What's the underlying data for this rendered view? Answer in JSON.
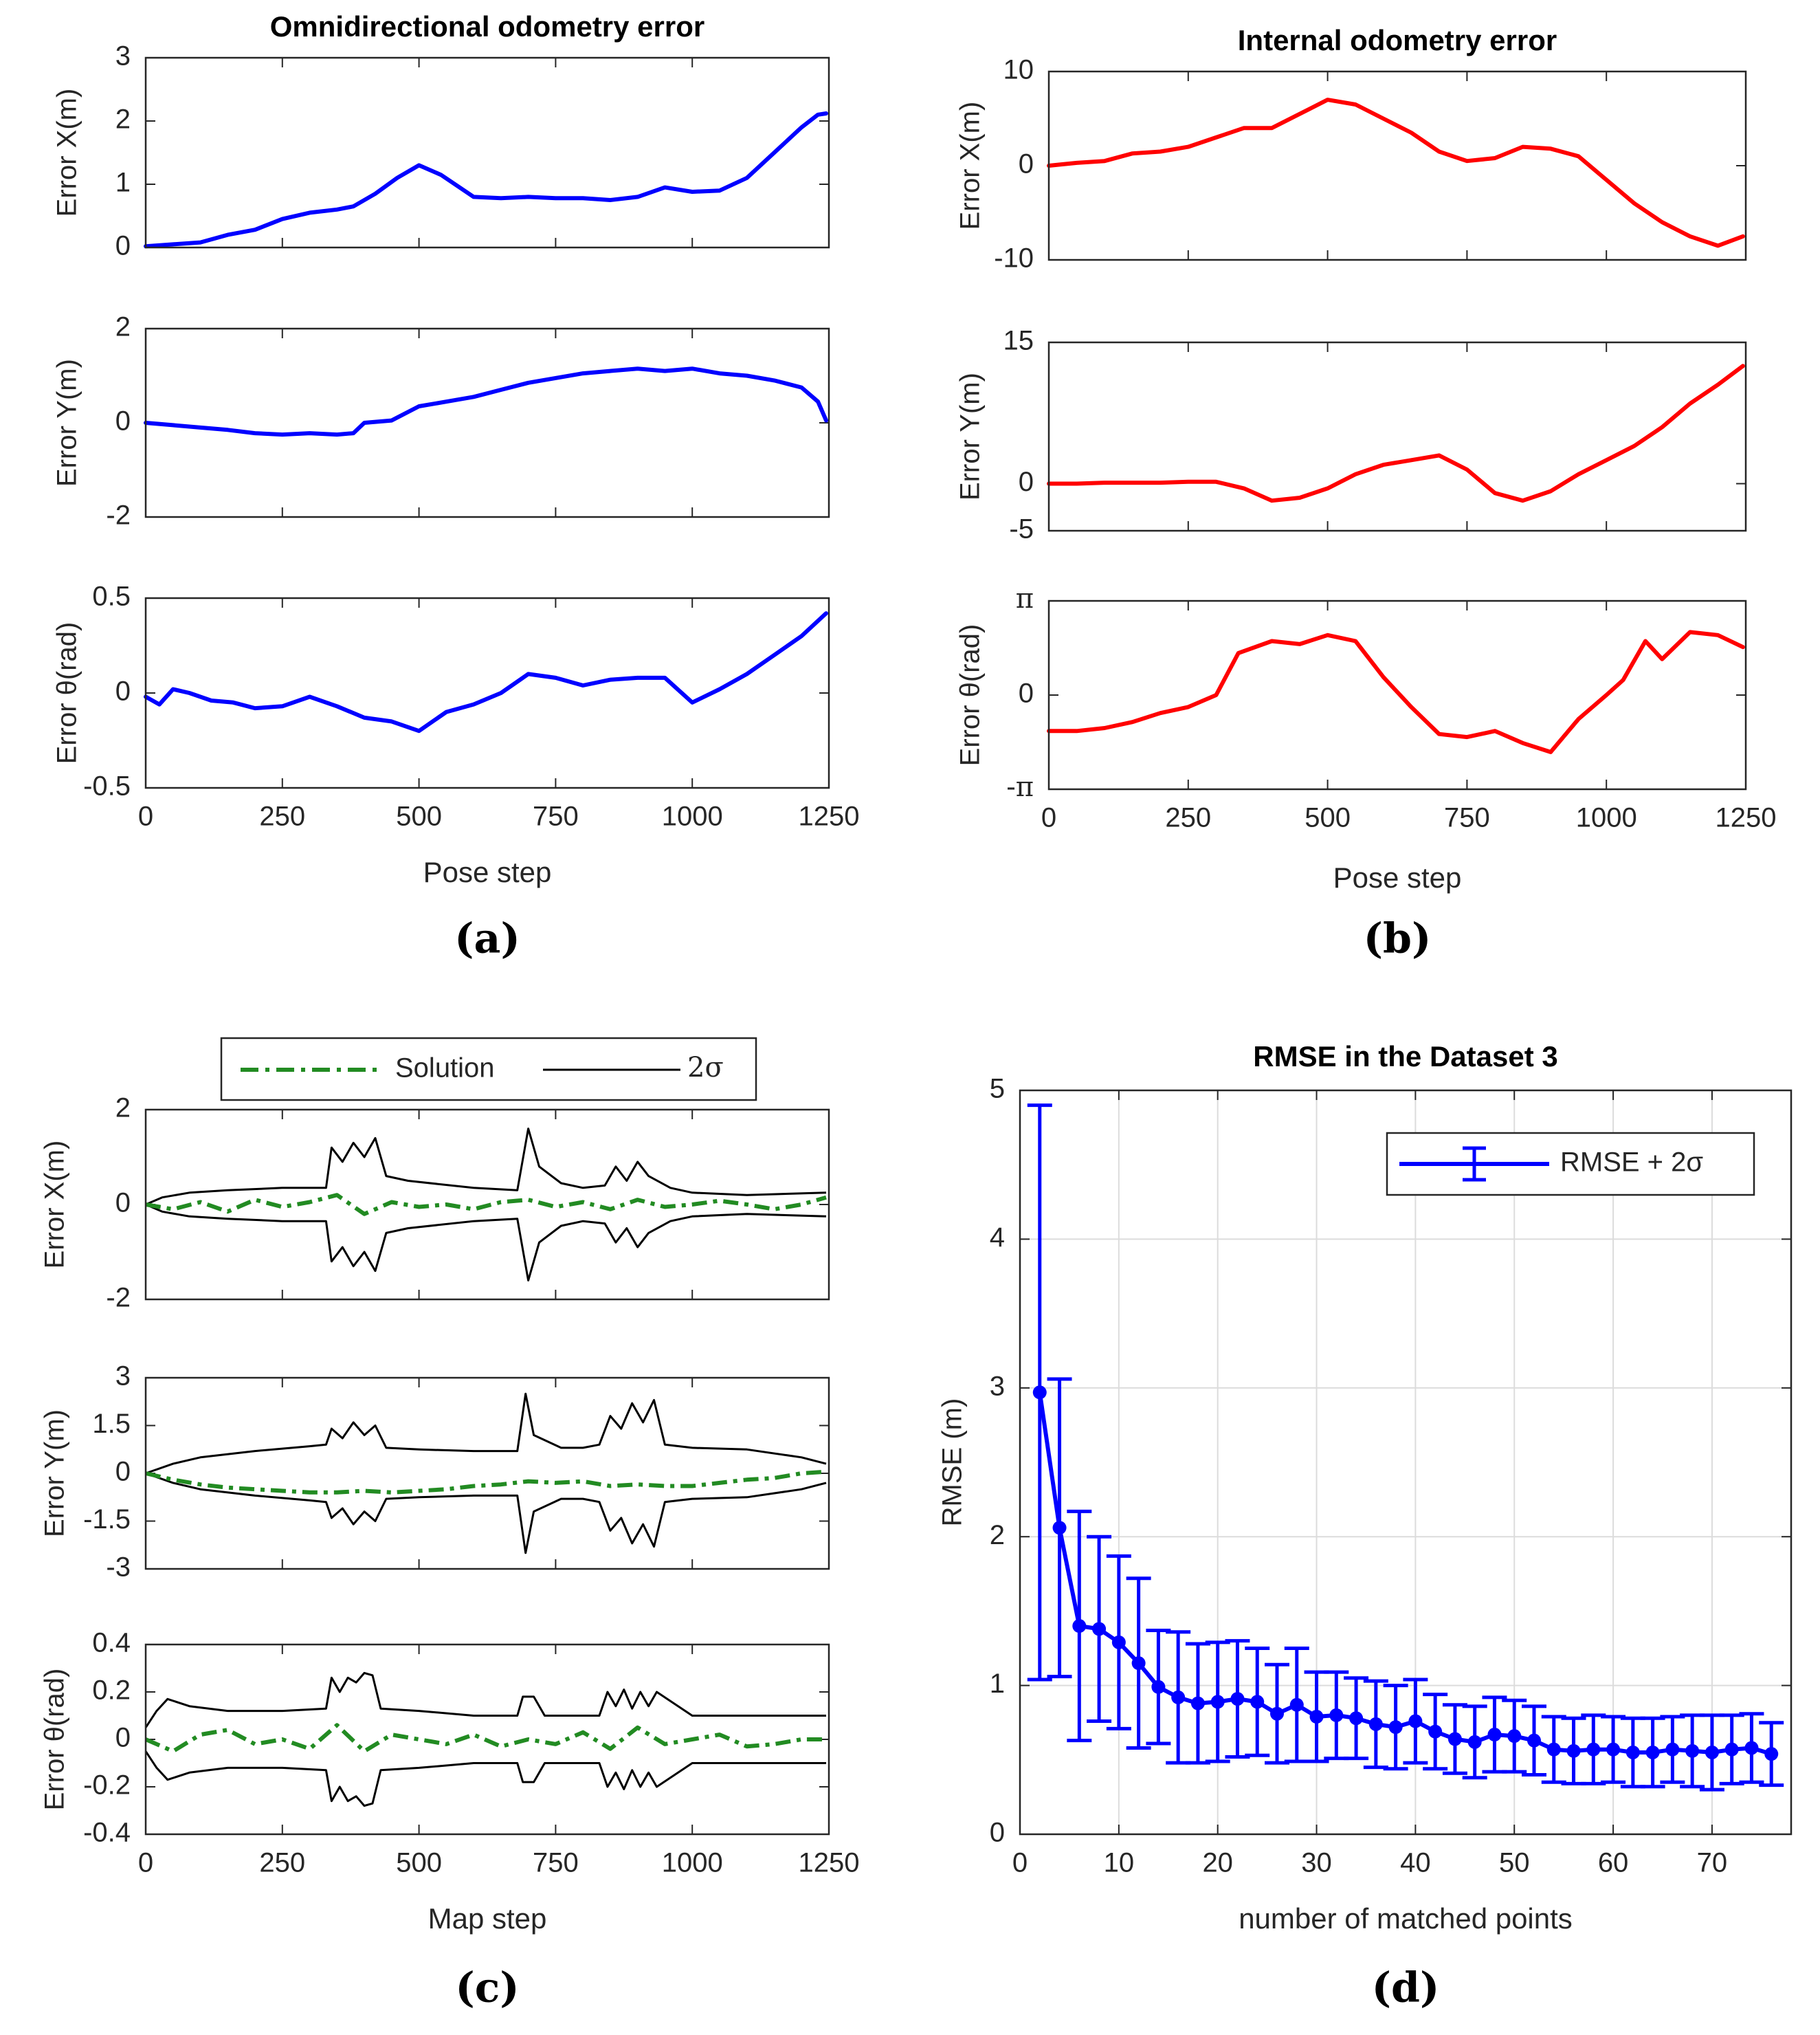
{
  "chart_data": [
    {
      "id": "a",
      "type": "line",
      "panel_label": "(a)",
      "title": "Omnidirectional odometry error",
      "xlabel": "Pose step",
      "xlim": [
        0,
        1250
      ],
      "xticks": [
        0,
        250,
        500,
        750,
        1000,
        1250
      ],
      "xtick_labels": [
        "0",
        "250",
        "500",
        "750",
        "1000",
        "1250"
      ],
      "color": "#0000ff",
      "subplots": [
        {
          "ylabel": "Error X(m)",
          "ylim": [
            0,
            3
          ],
          "yticks": [
            0,
            1,
            2,
            3
          ],
          "ytick_labels": [
            "0",
            "1",
            "2",
            "3"
          ],
          "x": [
            0,
            50,
            100,
            150,
            200,
            250,
            300,
            350,
            380,
            420,
            460,
            500,
            540,
            600,
            650,
            700,
            750,
            800,
            850,
            900,
            950,
            1000,
            1050,
            1100,
            1150,
            1200,
            1230,
            1245
          ],
          "y": [
            0.02,
            0.05,
            0.08,
            0.2,
            0.28,
            0.45,
            0.55,
            0.6,
            0.65,
            0.85,
            1.1,
            1.3,
            1.15,
            0.8,
            0.78,
            0.8,
            0.78,
            0.78,
            0.75,
            0.8,
            0.95,
            0.88,
            0.9,
            1.1,
            1.5,
            1.9,
            2.1,
            2.12
          ]
        },
        {
          "ylabel": "Error Y(m)",
          "ylim": [
            -2,
            2
          ],
          "yticks": [
            -2,
            0,
            2
          ],
          "ytick_labels": [
            "-2",
            "0",
            "2"
          ],
          "x": [
            0,
            50,
            100,
            150,
            200,
            250,
            300,
            350,
            380,
            400,
            450,
            500,
            550,
            600,
            650,
            700,
            750,
            800,
            850,
            900,
            950,
            1000,
            1050,
            1100,
            1150,
            1200,
            1230,
            1245
          ],
          "y": [
            0.0,
            -0.05,
            -0.1,
            -0.15,
            -0.22,
            -0.25,
            -0.22,
            -0.25,
            -0.22,
            0.0,
            0.05,
            0.35,
            0.45,
            0.55,
            0.7,
            0.85,
            0.95,
            1.05,
            1.1,
            1.15,
            1.1,
            1.15,
            1.05,
            1.0,
            0.9,
            0.75,
            0.45,
            0.05
          ]
        },
        {
          "ylabel": "Error θ(rad)",
          "ylim": [
            -0.5,
            0.5
          ],
          "yticks": [
            -0.5,
            0,
            0.5
          ],
          "ytick_labels": [
            "-0.5",
            "0",
            "0.5"
          ],
          "x": [
            0,
            25,
            50,
            80,
            120,
            160,
            200,
            250,
            300,
            350,
            400,
            450,
            480,
            500,
            550,
            600,
            650,
            700,
            750,
            800,
            850,
            900,
            950,
            1000,
            1050,
            1100,
            1150,
            1200,
            1245
          ],
          "y": [
            -0.02,
            -0.06,
            0.02,
            0.0,
            -0.04,
            -0.05,
            -0.08,
            -0.07,
            -0.02,
            -0.07,
            -0.13,
            -0.15,
            -0.18,
            -0.2,
            -0.1,
            -0.06,
            0.0,
            0.1,
            0.08,
            0.04,
            0.07,
            0.08,
            0.08,
            -0.05,
            0.02,
            0.1,
            0.2,
            0.3,
            0.42
          ]
        }
      ]
    },
    {
      "id": "b",
      "type": "line",
      "panel_label": "(b)",
      "title": "Internal odometry error",
      "xlabel": "Pose step",
      "xlim": [
        0,
        1250
      ],
      "xticks": [
        0,
        250,
        500,
        750,
        1000,
        1250
      ],
      "xtick_labels": [
        "0",
        "250",
        "500",
        "750",
        "1000",
        "1250"
      ],
      "color": "#ff0000",
      "subplots": [
        {
          "ylabel": "Error X(m)",
          "ylim": [
            -10,
            10
          ],
          "yticks": [
            -10,
            0,
            10
          ],
          "ytick_labels": [
            "-10",
            "0",
            "10"
          ],
          "x": [
            0,
            50,
            100,
            150,
            200,
            250,
            300,
            350,
            400,
            450,
            500,
            550,
            600,
            650,
            700,
            750,
            800,
            850,
            900,
            950,
            1000,
            1050,
            1100,
            1150,
            1200,
            1245
          ],
          "y": [
            0,
            0.3,
            0.5,
            1.3,
            1.5,
            2.0,
            3.0,
            4.0,
            4.0,
            5.5,
            7.0,
            6.5,
            5.0,
            3.5,
            1.5,
            0.5,
            0.8,
            2.0,
            1.8,
            1.0,
            -1.5,
            -4.0,
            -6.0,
            -7.5,
            -8.5,
            -7.5
          ]
        },
        {
          "ylabel": "Error Y(m)",
          "ylim": [
            -5,
            15
          ],
          "yticks": [
            -5,
            0,
            15
          ],
          "ytick_labels": [
            "-5",
            "0",
            "15"
          ],
          "x": [
            0,
            50,
            100,
            150,
            200,
            250,
            300,
            350,
            400,
            450,
            500,
            550,
            600,
            650,
            700,
            750,
            800,
            850,
            900,
            950,
            1000,
            1050,
            1100,
            1150,
            1200,
            1245
          ],
          "y": [
            0,
            0,
            0.1,
            0.1,
            0.1,
            0.2,
            0.2,
            -0.5,
            -1.8,
            -1.5,
            -0.5,
            1.0,
            2.0,
            2.5,
            3.0,
            1.5,
            -1.0,
            -1.8,
            -0.8,
            1.0,
            2.5,
            4.0,
            6.0,
            8.5,
            10.5,
            12.5
          ]
        },
        {
          "ylabel": "Error θ(rad)",
          "ylim": [
            -3.1416,
            3.1416
          ],
          "yticks": [
            -3.1416,
            0,
            3.1416
          ],
          "ytick_labels": [
            "-π",
            "0",
            "π"
          ],
          "x": [
            0,
            50,
            100,
            150,
            200,
            250,
            300,
            340,
            400,
            450,
            500,
            550,
            600,
            650,
            700,
            750,
            800,
            850,
            900,
            950,
            1000,
            1030,
            1070,
            1100,
            1150,
            1200,
            1245
          ],
          "y": [
            -1.2,
            -1.2,
            -1.1,
            -0.9,
            -0.6,
            -0.4,
            0.0,
            1.4,
            1.8,
            1.7,
            2.0,
            1.8,
            0.6,
            -0.4,
            -1.3,
            -1.4,
            -1.2,
            -1.6,
            -1.9,
            -0.8,
            0.0,
            0.5,
            1.8,
            1.2,
            2.1,
            2.0,
            1.6
          ]
        }
      ]
    },
    {
      "id": "c",
      "type": "line",
      "panel_label": "(c)",
      "xlabel": "Map step",
      "xlim": [
        0,
        1250
      ],
      "xticks": [
        0,
        250,
        500,
        750,
        1000,
        1250
      ],
      "xtick_labels": [
        "0",
        "250",
        "500",
        "750",
        "1000",
        "1250"
      ],
      "legend": [
        {
          "name": "Solution",
          "color": "#228b22",
          "style": "dash-dot"
        },
        {
          "name": "2σ",
          "color": "#000000",
          "style": "solid"
        }
      ],
      "legend_position": "top-center",
      "subplots": [
        {
          "ylabel": "Error X(m)",
          "ylim": [
            -2,
            2
          ],
          "yticks": [
            -2,
            0,
            2
          ],
          "ytick_labels": [
            "-2",
            "0",
            "2"
          ],
          "sigma_x": [
            0,
            30,
            80,
            150,
            250,
            330,
            340,
            360,
            380,
            400,
            420,
            440,
            480,
            600,
            680,
            700,
            720,
            760,
            800,
            840,
            860,
            880,
            900,
            920,
            960,
            1000,
            1100,
            1245
          ],
          "sigma_y": [
            0.0,
            0.15,
            0.25,
            0.3,
            0.35,
            0.35,
            1.2,
            0.9,
            1.3,
            1.0,
            1.4,
            0.6,
            0.5,
            0.35,
            0.3,
            1.6,
            0.8,
            0.45,
            0.35,
            0.4,
            0.8,
            0.5,
            0.9,
            0.6,
            0.35,
            0.25,
            0.2,
            0.25
          ],
          "solution_x": [
            0,
            50,
            100,
            150,
            200,
            250,
            300,
            350,
            400,
            450,
            500,
            550,
            600,
            650,
            700,
            750,
            800,
            850,
            900,
            950,
            1000,
            1050,
            1100,
            1150,
            1200,
            1245
          ],
          "solution_y": [
            0.0,
            -0.1,
            0.05,
            -0.15,
            0.1,
            -0.05,
            0.05,
            0.2,
            -0.2,
            0.05,
            -0.05,
            0.0,
            -0.1,
            0.05,
            0.1,
            -0.05,
            0.05,
            -0.1,
            0.1,
            -0.05,
            0.0,
            0.08,
            0.0,
            -0.1,
            0.0,
            0.15
          ]
        },
        {
          "ylabel": "Error Y(m)",
          "ylim": [
            -3,
            3
          ],
          "yticks": [
            -3,
            -1.5,
            0,
            1.5,
            3
          ],
          "ytick_labels": [
            "-3",
            "-1.5",
            "0",
            "1.5",
            "3"
          ],
          "sigma_x": [
            0,
            50,
            100,
            200,
            300,
            330,
            340,
            360,
            380,
            400,
            420,
            440,
            500,
            600,
            680,
            695,
            710,
            760,
            800,
            830,
            850,
            870,
            890,
            910,
            930,
            950,
            1000,
            1100,
            1200,
            1245
          ],
          "sigma_y": [
            0.0,
            0.3,
            0.5,
            0.7,
            0.85,
            0.9,
            1.4,
            1.1,
            1.6,
            1.2,
            1.5,
            0.8,
            0.75,
            0.7,
            0.7,
            2.5,
            1.2,
            0.8,
            0.8,
            0.9,
            1.8,
            1.4,
            2.2,
            1.6,
            2.3,
            0.9,
            0.8,
            0.75,
            0.5,
            0.3
          ],
          "solution_x": [
            0,
            50,
            100,
            150,
            200,
            250,
            300,
            350,
            400,
            450,
            500,
            550,
            600,
            650,
            700,
            750,
            800,
            850,
            900,
            950,
            1000,
            1050,
            1100,
            1150,
            1200,
            1245
          ],
          "solution_y": [
            0.0,
            -0.2,
            -0.35,
            -0.45,
            -0.5,
            -0.55,
            -0.6,
            -0.6,
            -0.55,
            -0.6,
            -0.55,
            -0.5,
            -0.4,
            -0.35,
            -0.25,
            -0.3,
            -0.25,
            -0.4,
            -0.35,
            -0.4,
            -0.4,
            -0.3,
            -0.2,
            -0.15,
            0.0,
            0.05
          ]
        },
        {
          "ylabel": "Error θ(rad)",
          "ylim": [
            -0.4,
            0.4
          ],
          "yticks": [
            -0.4,
            -0.2,
            0,
            0.2,
            0.4
          ],
          "ytick_labels": [
            "-0.4",
            "-0.2",
            "0",
            "0.2",
            "0.4"
          ],
          "sigma_x": [
            0,
            20,
            40,
            80,
            150,
            250,
            330,
            340,
            355,
            370,
            385,
            400,
            415,
            430,
            500,
            600,
            680,
            690,
            710,
            730,
            800,
            830,
            845,
            860,
            875,
            890,
            905,
            920,
            935,
            1000,
            1100,
            1245
          ],
          "sigma_y": [
            0.05,
            0.12,
            0.17,
            0.14,
            0.12,
            0.12,
            0.13,
            0.26,
            0.2,
            0.26,
            0.24,
            0.28,
            0.27,
            0.13,
            0.12,
            0.1,
            0.1,
            0.18,
            0.18,
            0.1,
            0.1,
            0.1,
            0.2,
            0.14,
            0.21,
            0.13,
            0.2,
            0.14,
            0.2,
            0.1,
            0.1,
            0.1
          ],
          "solution_x": [
            0,
            50,
            100,
            150,
            200,
            250,
            300,
            350,
            400,
            450,
            500,
            550,
            600,
            650,
            700,
            750,
            800,
            850,
            900,
            950,
            1000,
            1050,
            1100,
            1150,
            1200,
            1245
          ],
          "solution_y": [
            0.0,
            -0.05,
            0.02,
            0.04,
            -0.02,
            0.0,
            -0.04,
            0.06,
            -0.05,
            0.02,
            0.0,
            -0.02,
            0.02,
            -0.03,
            0.0,
            -0.02,
            0.03,
            -0.04,
            0.05,
            -0.02,
            0.0,
            0.02,
            -0.03,
            -0.02,
            0.0,
            0.0
          ]
        }
      ]
    },
    {
      "id": "d",
      "type": "line",
      "subtype": "errorbar",
      "panel_label": "(d)",
      "title": "RMSE in the Dataset 3",
      "xlabel": "number of matched points",
      "ylabel": "RMSE (m)",
      "xlim": [
        0,
        78
      ],
      "ylim": [
        0,
        5
      ],
      "xticks": [
        0,
        10,
        20,
        30,
        40,
        50,
        60,
        70
      ],
      "xtick_labels": [
        "0",
        "10",
        "20",
        "30",
        "40",
        "50",
        "60",
        "70"
      ],
      "yticks": [
        0,
        1,
        2,
        3,
        4,
        5
      ],
      "ytick_labels": [
        "0",
        "1",
        "2",
        "3",
        "4",
        "5"
      ],
      "grid": true,
      "color": "#0000ff",
      "legend": [
        {
          "name": "RMSE + 2σ",
          "color": "#0000ff"
        }
      ],
      "legend_position": "top-right",
      "x": [
        2,
        4,
        6,
        8,
        10,
        12,
        14,
        16,
        18,
        20,
        22,
        24,
        26,
        28,
        30,
        32,
        34,
        36,
        38,
        40,
        42,
        44,
        46,
        48,
        50,
        52,
        54,
        56,
        58,
        60,
        62,
        64,
        66,
        68,
        70,
        72,
        74,
        76
      ],
      "y": [
        2.97,
        2.06,
        1.4,
        1.38,
        1.29,
        1.15,
        0.99,
        0.92,
        0.88,
        0.89,
        0.91,
        0.89,
        0.81,
        0.87,
        0.79,
        0.8,
        0.78,
        0.74,
        0.72,
        0.76,
        0.69,
        0.64,
        0.62,
        0.67,
        0.66,
        0.63,
        0.57,
        0.56,
        0.57,
        0.57,
        0.55,
        0.55,
        0.57,
        0.56,
        0.55,
        0.57,
        0.58,
        0.54
      ],
      "err": [
        1.93,
        1.0,
        0.77,
        0.62,
        0.58,
        0.57,
        0.38,
        0.44,
        0.4,
        0.4,
        0.39,
        0.36,
        0.33,
        0.38,
        0.3,
        0.29,
        0.27,
        0.29,
        0.28,
        0.28,
        0.25,
        0.23,
        0.24,
        0.25,
        0.24,
        0.23,
        0.22,
        0.22,
        0.23,
        0.22,
        0.23,
        0.23,
        0.22,
        0.24,
        0.25,
        0.23,
        0.23,
        0.21
      ]
    }
  ]
}
